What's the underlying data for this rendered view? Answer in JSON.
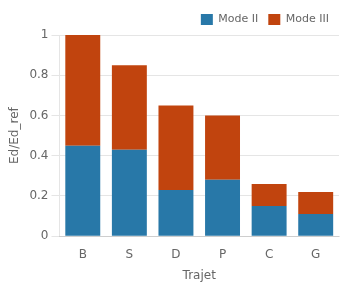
{
  "chart_data": {
    "type": "bar",
    "stacked": true,
    "categories": [
      "B",
      "S",
      "D",
      "P",
      "C",
      "G"
    ],
    "series": [
      {
        "name": "Mode II",
        "color": "#2878a8",
        "values": [
          0.45,
          0.43,
          0.23,
          0.28,
          0.15,
          0.11
        ]
      },
      {
        "name": "Mode III",
        "color": "#c1440e",
        "values": [
          0.55,
          0.42,
          0.42,
          0.32,
          0.11,
          0.11
        ]
      }
    ],
    "xlabel": "Trajet",
    "ylabel": "Ed/Ed_ref",
    "ylim": [
      0,
      1.0
    ],
    "yticks": [
      0,
      0.2,
      0.4,
      0.6,
      0.8,
      1
    ],
    "grid": true,
    "legend": "upper right"
  }
}
